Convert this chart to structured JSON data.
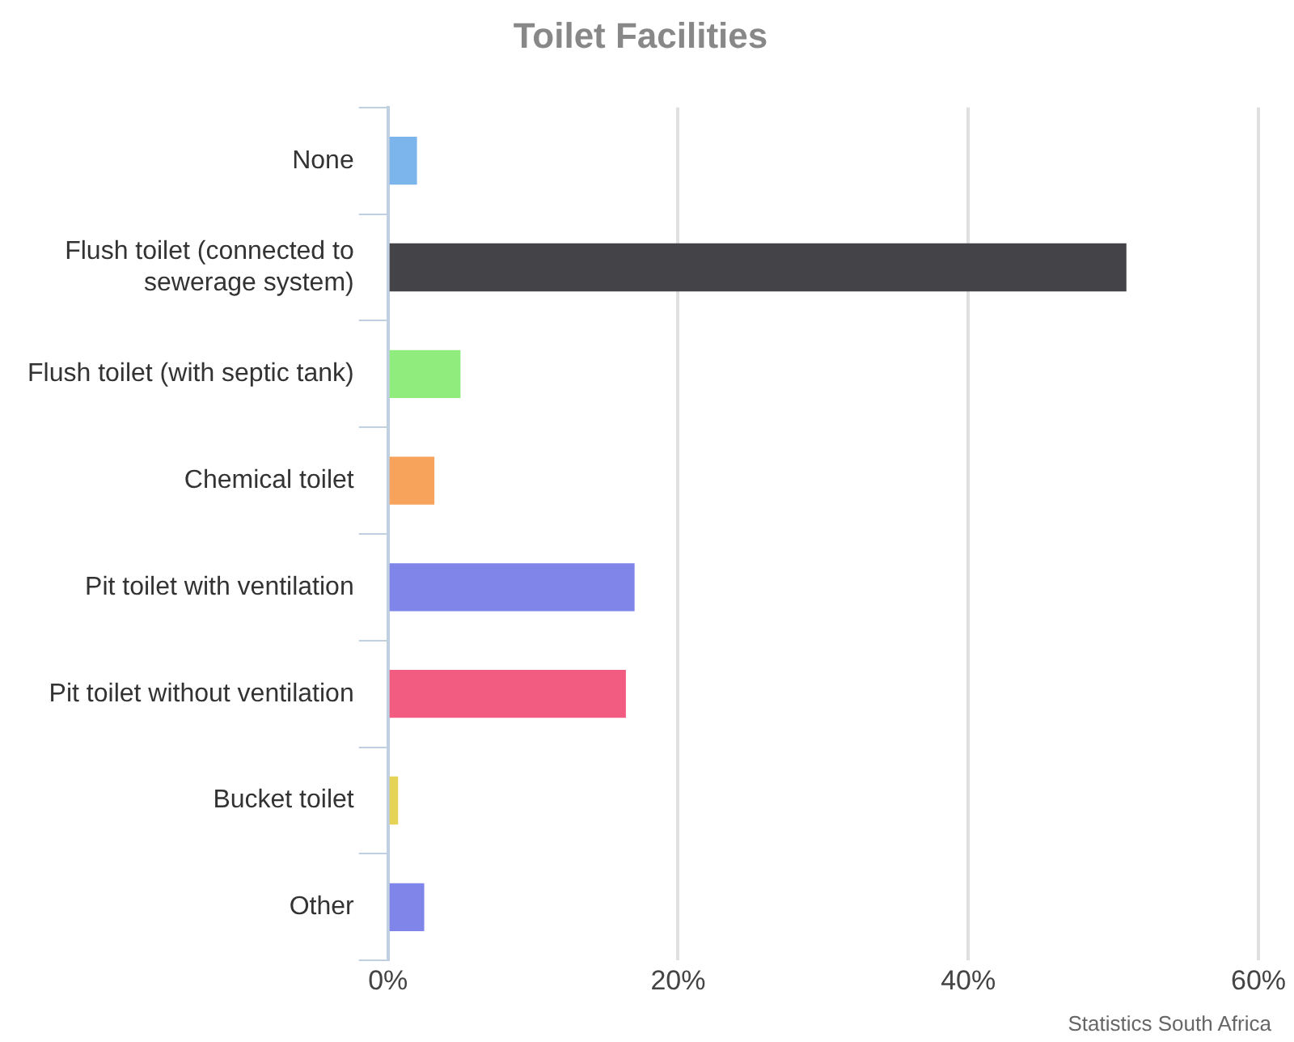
{
  "chart_data": {
    "type": "bar",
    "orientation": "horizontal",
    "title": "Toilet Facilities",
    "categories": [
      "None",
      "Flush toilet (connected to sewerage system)",
      "Flush toilet (with septic tank)",
      "Chemical toilet",
      "Pit toilet with ventilation",
      "Pit toilet without ventilation",
      "Bucket toilet",
      "Other"
    ],
    "values": [
      2.0,
      50.9,
      5.0,
      3.2,
      17.0,
      16.4,
      0.7,
      2.5
    ],
    "colors": [
      "#7cb5ec",
      "#434348",
      "#90ed7d",
      "#f7a35c",
      "#8085e9",
      "#f15c80",
      "#e4d354",
      "#8085e9"
    ],
    "xlim": [
      0,
      60
    ],
    "xticks": [
      {
        "value": 0,
        "label": "0%"
      },
      {
        "value": 20,
        "label": "20%"
      },
      {
        "value": 40,
        "label": "40%"
      },
      {
        "value": 60,
        "label": "60%"
      }
    ],
    "grid": "x",
    "annotations": [
      "Statistics South Africa"
    ]
  }
}
